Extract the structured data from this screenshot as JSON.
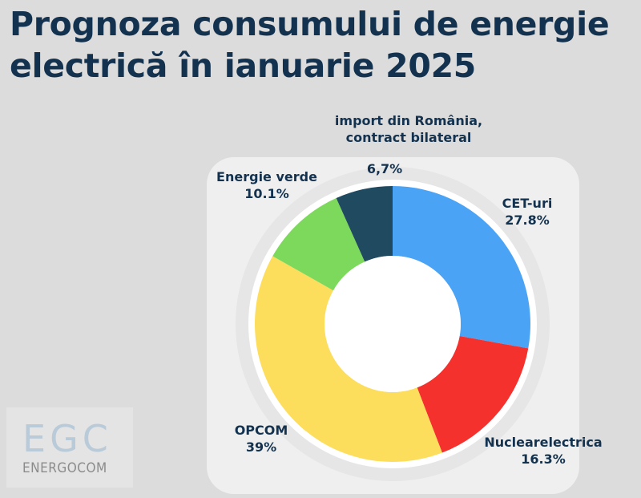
{
  "title": "Prognoza consumului de energie electrică în ianuarie 2025",
  "chart_data": {
    "type": "pie",
    "title": "Prognoza consumului de energie electrică în ianuarie 2025",
    "slices": [
      {
        "name": "CET-uri",
        "label": "27.8%",
        "value": 27.8,
        "color": "#4aa3f5"
      },
      {
        "name": "Nuclearelectrica",
        "label": "16.3%",
        "value": 16.3,
        "color": "#f5312e"
      },
      {
        "name": "OPCOM",
        "label": "39%",
        "value": 39.0,
        "color": "#fddd5c"
      },
      {
        "name": "Energie verde",
        "label": "10.1%",
        "value": 10.1,
        "color": "#7cd95b"
      },
      {
        "name": "import din România, contract bilateral",
        "label": "6,7%",
        "value": 6.7,
        "color": "#1f4a60"
      }
    ]
  },
  "labels": {
    "cet_name": "CET-uri",
    "nuclear_name": "Nuclearelectrica",
    "opcom_name": "OPCOM",
    "verde_name": "Energie verde",
    "import_name_line1": "import din România,",
    "import_name_line2": "contract bilateral"
  },
  "logo": {
    "mark": "EGC",
    "name": "ENERGOCOM"
  }
}
